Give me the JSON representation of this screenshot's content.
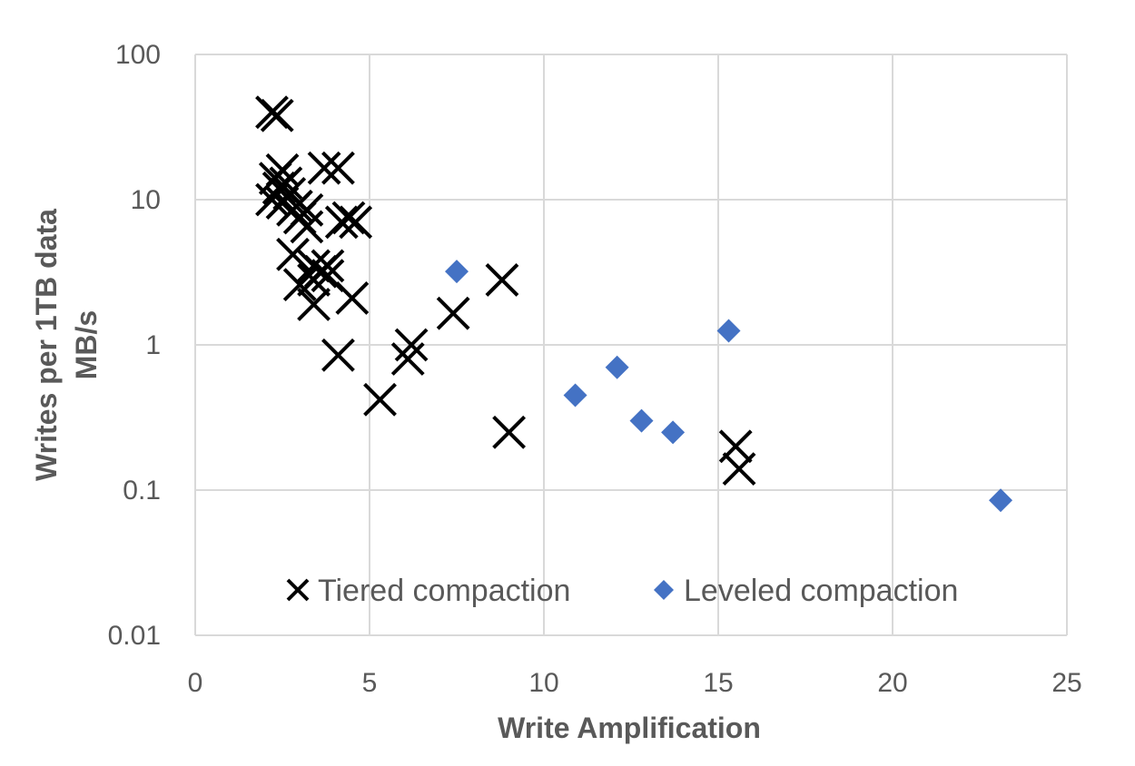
{
  "chart_data": {
    "type": "scatter",
    "xlabel": "Write Amplification",
    "ylabel": [
      "Writes per 1TB data",
      "MB/s"
    ],
    "xlim": [
      0,
      25
    ],
    "ylim": [
      0.01,
      100
    ],
    "yscale": "log",
    "grid": true,
    "legend_position": "bottom-inside",
    "x_ticks": [
      "0",
      "5",
      "10",
      "15",
      "20",
      "25"
    ],
    "y_ticks": [
      "0.01",
      "0.1",
      "1",
      "10",
      "100"
    ],
    "series": [
      {
        "name": "Tiered compaction",
        "marker": "x",
        "color": "#000000",
        "points": [
          [
            2.2,
            40
          ],
          [
            2.35,
            38
          ],
          [
            2.3,
            14
          ],
          [
            2.5,
            16
          ],
          [
            2.4,
            12
          ],
          [
            2.6,
            13
          ],
          [
            2.7,
            11
          ],
          [
            2.2,
            10
          ],
          [
            2.5,
            9.5
          ],
          [
            2.9,
            9
          ],
          [
            2.8,
            8.5
          ],
          [
            3.2,
            8.5
          ],
          [
            3.0,
            7.5
          ],
          [
            2.8,
            4.2
          ],
          [
            3.2,
            6.5
          ],
          [
            3.7,
            16.5
          ],
          [
            4.1,
            16.5
          ],
          [
            4.2,
            7.0
          ],
          [
            4.4,
            7.5
          ],
          [
            4.6,
            7.0
          ],
          [
            3.4,
            3.5
          ],
          [
            3.6,
            3.2
          ],
          [
            3.8,
            3.5
          ],
          [
            3.0,
            2.6
          ],
          [
            3.4,
            2.8
          ],
          [
            3.8,
            3.0
          ],
          [
            3.4,
            1.9
          ],
          [
            4.5,
            2.1
          ],
          [
            4.1,
            0.85
          ],
          [
            5.3,
            0.42
          ],
          [
            6.2,
            1.0
          ],
          [
            6.1,
            0.8
          ],
          [
            7.4,
            1.65
          ],
          [
            8.8,
            2.8
          ],
          [
            9.0,
            0.25
          ],
          [
            15.5,
            0.2
          ],
          [
            15.6,
            0.14
          ]
        ]
      },
      {
        "name": "Leveled compaction",
        "marker": "diamond",
        "color": "#4472C4",
        "points": [
          [
            7.5,
            3.2
          ],
          [
            10.9,
            0.45
          ],
          [
            12.1,
            0.7
          ],
          [
            12.8,
            0.3
          ],
          [
            13.7,
            0.25
          ],
          [
            15.3,
            1.25
          ],
          [
            23.1,
            0.085
          ]
        ]
      }
    ]
  }
}
